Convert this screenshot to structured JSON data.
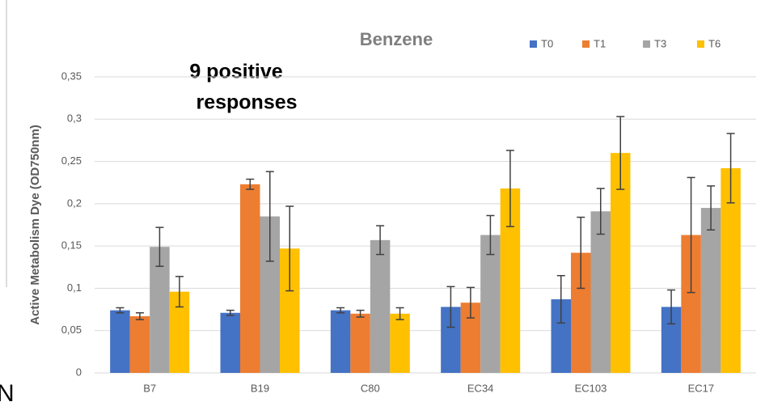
{
  "chart_data": {
    "type": "bar",
    "title": "Benzene",
    "annotation": [
      "9 positive",
      "responses"
    ],
    "edge_text": "N",
    "y_label": "Active Metabolism Dye (OD750nm)",
    "categories": [
      "B7",
      "B19",
      "C80",
      "EC34",
      "EC103",
      "EC17"
    ],
    "series": [
      {
        "name": "T0",
        "color": "#4472c4",
        "values": [
          0.074,
          0.071,
          0.074,
          0.078,
          0.087,
          0.078
        ],
        "errors": [
          0.003,
          0.003,
          0.003,
          0.024,
          0.028,
          0.02
        ]
      },
      {
        "name": "T1",
        "color": "#ed7d31",
        "values": [
          0.067,
          0.223,
          0.07,
          0.083,
          0.142,
          0.163
        ],
        "errors": [
          0.004,
          0.006,
          0.004,
          0.018,
          0.042,
          0.068
        ]
      },
      {
        "name": "T3",
        "color": "#a5a5a5",
        "values": [
          0.149,
          0.185,
          0.157,
          0.163,
          0.191,
          0.195
        ],
        "errors": [
          0.023,
          0.053,
          0.017,
          0.023,
          0.027,
          0.026
        ]
      },
      {
        "name": "T6",
        "color": "#ffc000",
        "values": [
          0.096,
          0.147,
          0.07,
          0.218,
          0.26,
          0.242
        ],
        "errors": [
          0.018,
          0.05,
          0.007,
          0.045,
          0.043,
          0.041
        ]
      }
    ],
    "ylim": [
      0,
      0.35
    ],
    "yticks": [
      0,
      {
        "value": 0.05,
        "label": "0,05"
      },
      {
        "value": 0.1,
        "label": "0,1"
      },
      {
        "value": 0.15,
        "label": "0,15"
      },
      {
        "value": 0.2,
        "label": "0,2"
      },
      {
        "value": 0.25,
        "label": "0,25"
      },
      {
        "value": 0.3,
        "label": "0,3"
      },
      {
        "value": 0.35,
        "label": "0,35"
      }
    ],
    "grid": true,
    "legend": "top-right"
  }
}
